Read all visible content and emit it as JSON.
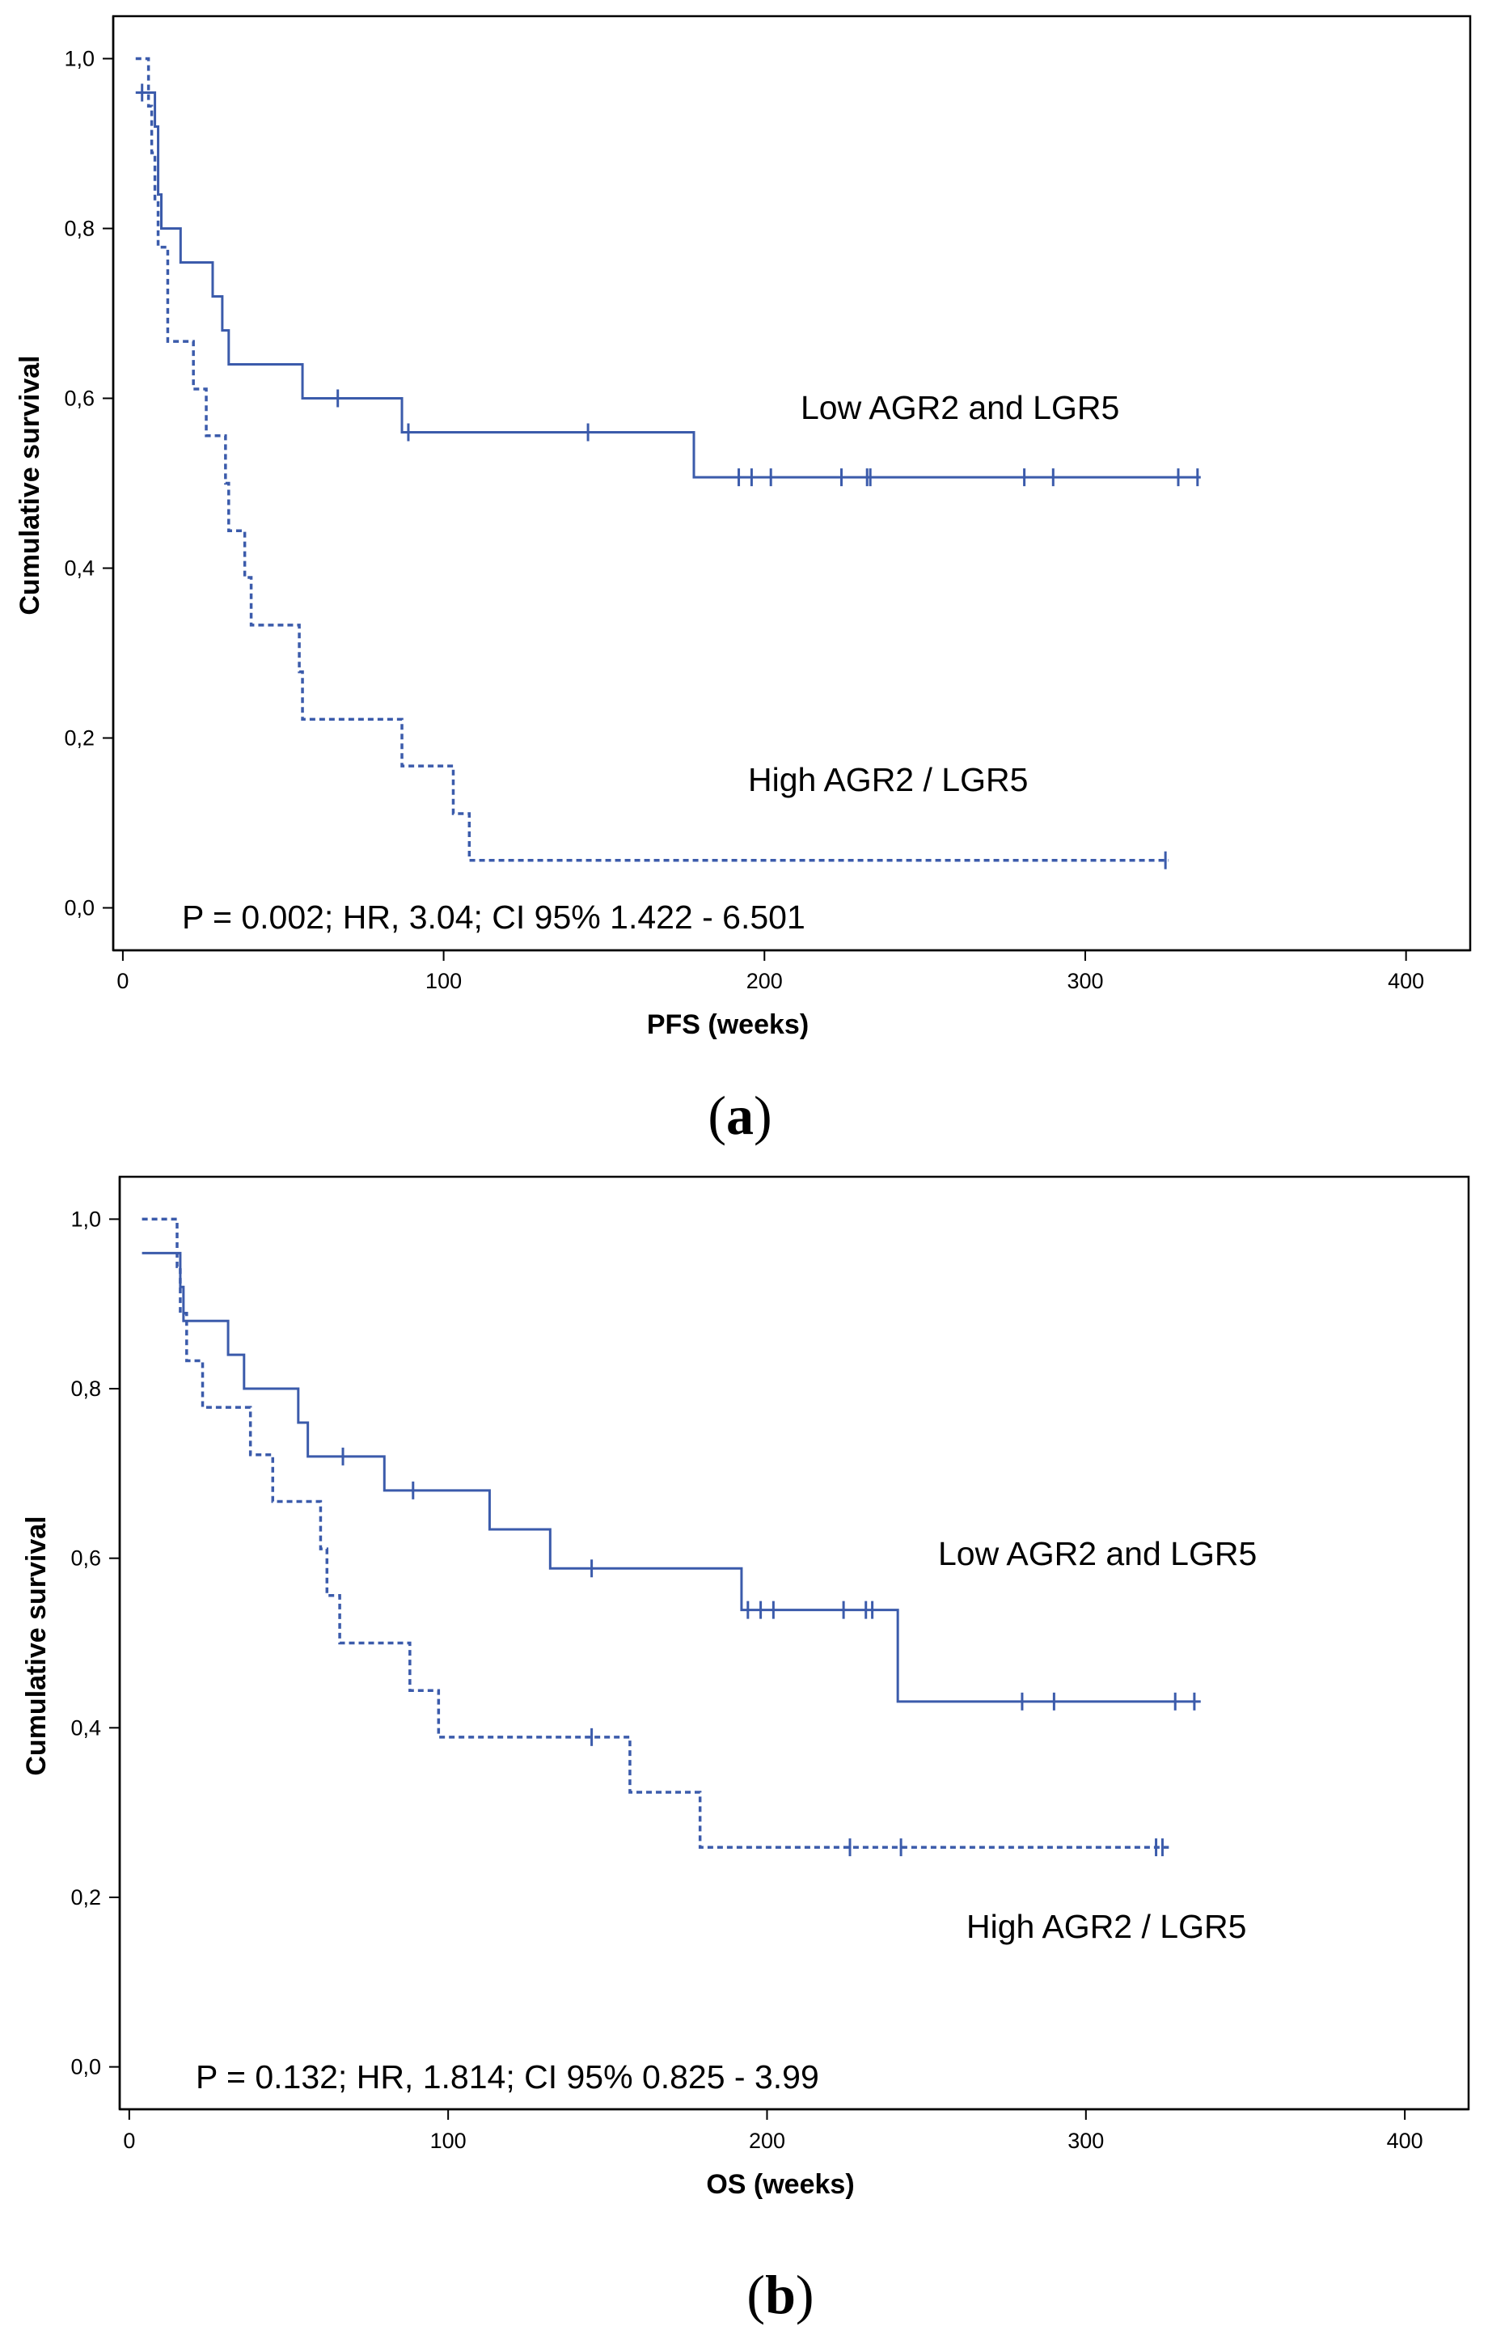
{
  "chart_data": [
    {
      "panel": "a",
      "panel_label": "a",
      "type": "line",
      "subtype": "kaplan-meier",
      "xlabel": "PFS (weeks)",
      "ylabel": "Cumulative survival",
      "xlim": [
        -3,
        420
      ],
      "ylim": [
        -0.05,
        1.05
      ],
      "xticks": [
        0,
        100,
        200,
        300,
        400
      ],
      "xtick_labels": [
        "0",
        "100",
        "200",
        "300",
        "400"
      ],
      "yticks": [
        0.0,
        0.2,
        0.4,
        0.6,
        0.8,
        1.0
      ],
      "ytick_labels": [
        "0,0",
        "0,2",
        "0,4",
        "0,6",
        "0,8",
        "1,0"
      ],
      "grid": false,
      "annotation": "P = 0.002; HR, 3.04; CI 95% 1.422 - 6.501",
      "series": [
        {
          "name": "Low AGR2 and LGR5",
          "label_text": "Low AGR2 and LGR5",
          "line_style": "solid",
          "color": "#3b5bab",
          "steps": [
            [
              4,
              0.96
            ],
            [
              10,
              0.92
            ],
            [
              11,
              0.84
            ],
            [
              12,
              0.8
            ],
            [
              18,
              0.76
            ],
            [
              28,
              0.72
            ],
            [
              31,
              0.68
            ],
            [
              33,
              0.64
            ],
            [
              56,
              0.6
            ],
            [
              87,
              0.56
            ],
            [
              178,
              0.507
            ],
            [
              336,
              0.507
            ]
          ],
          "censored": [
            [
              6,
              0.96
            ],
            [
              67,
              0.6
            ],
            [
              89,
              0.56
            ],
            [
              145,
              0.56
            ],
            [
              192,
              0.507
            ],
            [
              196,
              0.507
            ],
            [
              202,
              0.507
            ],
            [
              224,
              0.507
            ],
            [
              232,
              0.507
            ],
            [
              233,
              0.507
            ],
            [
              281,
              0.507
            ],
            [
              290,
              0.507
            ],
            [
              329,
              0.507
            ],
            [
              335,
              0.507
            ]
          ]
        },
        {
          "name": "High AGR2 / LGR5",
          "label_text": "High AGR2 / LGR5",
          "line_style": "dashed",
          "color": "#3b5bab",
          "steps": [
            [
              4,
              1.0
            ],
            [
              8,
              0.944
            ],
            [
              9,
              0.889
            ],
            [
              10,
              0.833
            ],
            [
              11,
              0.778
            ],
            [
              14,
              0.667
            ],
            [
              22,
              0.611
            ],
            [
              26,
              0.556
            ],
            [
              32,
              0.5
            ],
            [
              33,
              0.444
            ],
            [
              38,
              0.389
            ],
            [
              40,
              0.333
            ],
            [
              55,
              0.278
            ],
            [
              56,
              0.222
            ],
            [
              87,
              0.167
            ],
            [
              103,
              0.111
            ],
            [
              108,
              0.056
            ],
            [
              326,
              0.056
            ]
          ],
          "censored": [
            [
              325,
              0.056
            ]
          ]
        }
      ]
    },
    {
      "panel": "b",
      "panel_label": "b",
      "type": "line",
      "subtype": "kaplan-meier",
      "xlabel": "OS (weeks)",
      "ylabel": "Cumulative survival",
      "xlim": [
        -3,
        420
      ],
      "ylim": [
        -0.05,
        1.05
      ],
      "xticks": [
        0,
        100,
        200,
        300,
        400
      ],
      "xtick_labels": [
        "0",
        "100",
        "200",
        "300",
        "400"
      ],
      "yticks": [
        0.0,
        0.2,
        0.4,
        0.6,
        0.8,
        1.0
      ],
      "ytick_labels": [
        "0,0",
        "0,2",
        "0,4",
        "0,6",
        "0,8",
        "1,0"
      ],
      "grid": false,
      "annotation": "P = 0.132; HR, 1.814; CI 95% 0.825 - 3.99",
      "series": [
        {
          "name": "Low AGR2 and LGR5",
          "label_text": "Low AGR2 and LGR5",
          "line_style": "solid",
          "color": "#3b5bab",
          "steps": [
            [
              4,
              0.96
            ],
            [
              16,
              0.92
            ],
            [
              17,
              0.88
            ],
            [
              31,
              0.84
            ],
            [
              36,
              0.8
            ],
            [
              53,
              0.76
            ],
            [
              56,
              0.72
            ],
            [
              80,
              0.68
            ],
            [
              113,
              0.634
            ],
            [
              132,
              0.588
            ],
            [
              192,
              0.539
            ],
            [
              241,
              0.431
            ],
            [
              336,
              0.431
            ]
          ],
          "censored": [
            [
              67,
              0.72
            ],
            [
              89,
              0.68
            ],
            [
              145,
              0.588
            ],
            [
              194,
              0.539
            ],
            [
              198,
              0.539
            ],
            [
              202,
              0.539
            ],
            [
              224,
              0.539
            ],
            [
              231,
              0.539
            ],
            [
              233,
              0.539
            ],
            [
              280,
              0.431
            ],
            [
              290,
              0.431
            ],
            [
              328,
              0.431
            ],
            [
              334,
              0.431
            ]
          ]
        },
        {
          "name": "High AGR2 / LGR5",
          "label_text": "High AGR2 / LGR5",
          "line_style": "dashed",
          "color": "#3b5bab",
          "steps": [
            [
              4,
              1.0
            ],
            [
              15,
              0.944
            ],
            [
              16,
              0.889
            ],
            [
              18,
              0.833
            ],
            [
              23,
              0.778
            ],
            [
              38,
              0.722
            ],
            [
              45,
              0.667
            ],
            [
              60,
              0.611
            ],
            [
              62,
              0.556
            ],
            [
              66,
              0.5
            ],
            [
              88,
              0.444
            ],
            [
              97,
              0.389
            ],
            [
              157,
              0.324
            ],
            [
              179,
              0.259
            ],
            [
              326,
              0.259
            ]
          ],
          "censored": [
            [
              145,
              0.389
            ],
            [
              226,
              0.259
            ],
            [
              242,
              0.259
            ],
            [
              322,
              0.259
            ],
            [
              324,
              0.259
            ]
          ]
        }
      ]
    }
  ]
}
